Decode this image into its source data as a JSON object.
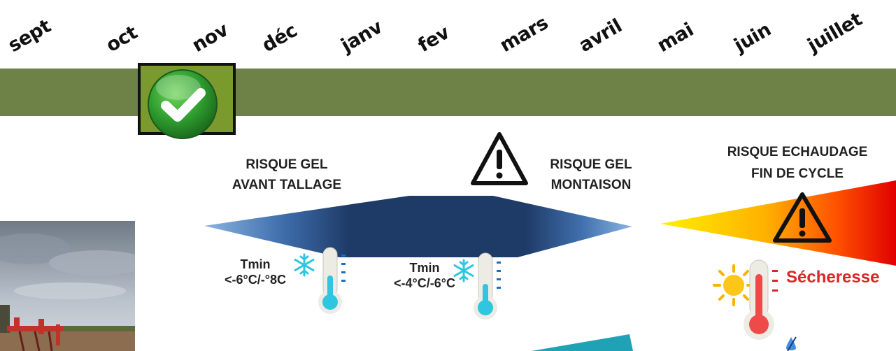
{
  "months": [
    "sept",
    "oct",
    "nov",
    "déc",
    "janv",
    "fev",
    "mars",
    "avril",
    "mai",
    "juin",
    "juillet"
  ],
  "risks": {
    "gel_avant_tallage": [
      "RISQUE GEL",
      "AVANT TALLAGE"
    ],
    "gel_montaison": [
      "RISQUE GEL",
      "MONTAISON"
    ],
    "echaudage": [
      "RISQUE ECHAUDAGE",
      "FIN DE CYCLE"
    ]
  },
  "tmin": {
    "first": {
      "label": "Tmin",
      "value": "<-6°C/-°8C"
    },
    "second": {
      "label": "Tmin",
      "value": "<-4°C/-6°C"
    }
  },
  "secheresse": "Sécheresse",
  "icons": [
    "check-icon",
    "warning-icon",
    "snowflake-icon",
    "thermometer-icon",
    "sun-icon",
    "field-photo"
  ],
  "colors": {
    "band": "#6e8146",
    "highlight": "#7a9a2e",
    "gel": "#1f3a64",
    "heat_start": "#ffe000",
    "heat_end": "#e00000",
    "teal": "#1fa2b5",
    "secheresse": "#d92626"
  }
}
